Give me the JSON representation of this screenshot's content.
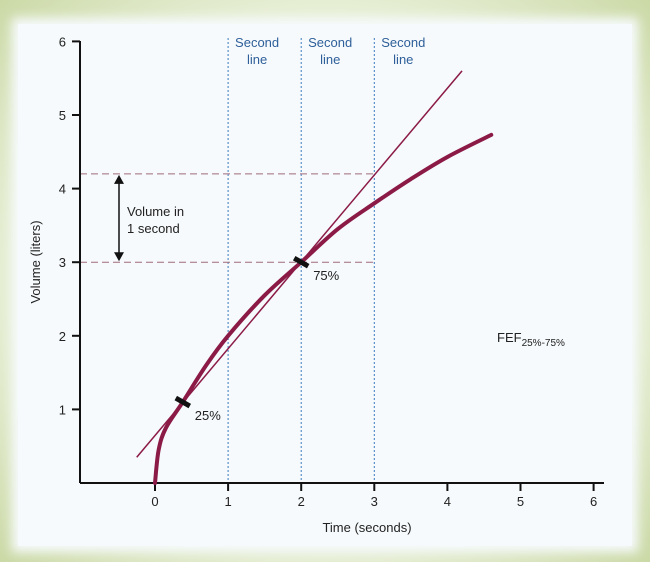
{
  "chart_data": {
    "type": "line",
    "title": "",
    "xlabel": "Time (seconds)",
    "ylabel": "Volume (liters)",
    "xlim": [
      -1,
      6.1
    ],
    "ylim": [
      0,
      6
    ],
    "xticks": [
      "0",
      "1",
      "2",
      "3",
      "4",
      "5",
      "6"
    ],
    "yticks": [
      "1",
      "2",
      "3",
      "4",
      "5",
      "6"
    ],
    "series": [
      {
        "name": "Expiration curve",
        "x": [
          0,
          0.05,
          0.15,
          0.38,
          0.7,
          1,
          1.5,
          2,
          2.5,
          3,
          3.5,
          4,
          4.6
        ],
        "y": [
          0,
          0.45,
          0.75,
          1.1,
          1.6,
          2.0,
          2.55,
          3.0,
          3.45,
          3.8,
          4.13,
          4.43,
          4.73
        ]
      },
      {
        "name": "FEF tangent line",
        "x": [
          -0.25,
          4.2
        ],
        "y": [
          0.35,
          5.6
        ]
      }
    ],
    "markers": [
      {
        "label": "25%",
        "x": 0.38,
        "y": 1.1
      },
      {
        "label": "75%",
        "x": 2.0,
        "y": 3.0
      }
    ],
    "vertical_lines": [
      {
        "x": 1,
        "label_line1": "Second",
        "label_line2": "line"
      },
      {
        "x": 2,
        "label_line1": "Second",
        "label_line2": "line"
      },
      {
        "x": 3,
        "label_line1": "Second",
        "label_line2": "line"
      }
    ],
    "horizontal_lines": [
      4.2,
      3.0
    ],
    "annotations": {
      "volume_line1": "Volume in",
      "volume_line2": "1 second",
      "fef_main": "FEF",
      "fef_sub": "25%-75%"
    },
    "colors": {
      "curve": "#8b1a47",
      "grid": "#3a7cc0",
      "dashed": "#a06a7a",
      "label": "#2e5f9a"
    }
  }
}
